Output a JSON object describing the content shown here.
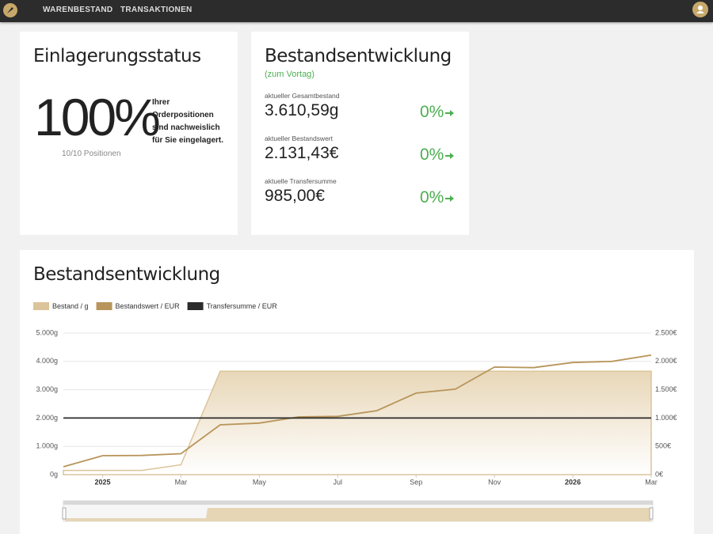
{
  "nav": {
    "items": [
      "WARENBESTAND",
      "TRANSAKTIONEN"
    ]
  },
  "status_card": {
    "title": "Einlagerungsstatus",
    "percent": "100%",
    "description": "Ihrer Orderpositionen sind nachweislich für Sie eingelagert.",
    "positions": "10/10 Positionen"
  },
  "development_card": {
    "title": "Bestandsentwicklung",
    "subtitle": "(zum Vortag)",
    "items": [
      {
        "label": "aktueller Gesamtbestand",
        "value": "3.610,59g",
        "change": "0%"
      },
      {
        "label": "aktueller Bestandswert",
        "value": "2.131,43€",
        "change": "0%"
      },
      {
        "label": "aktuelle Transfersumme",
        "value": "985,00€",
        "change": "0%"
      }
    ]
  },
  "chart_data": {
    "type": "line",
    "title": "Bestandsentwicklung",
    "x": [
      "2024-12",
      "2025-01",
      "2025-02",
      "2025-03",
      "2025-04",
      "2025-05",
      "2025-06",
      "2025-07",
      "2025-08",
      "2025-09",
      "2025-10",
      "2025-11",
      "2025-12",
      "2026-01",
      "2026-02",
      "2026-03"
    ],
    "series": [
      {
        "name": "Bestand / g",
        "color": "#dcc49a",
        "area": true,
        "axis": "y",
        "values": [
          150,
          150,
          150,
          350,
          3650,
          3650,
          3650,
          3650,
          3650,
          3650,
          3650,
          3650,
          3650,
          3650,
          3650,
          3650
        ]
      },
      {
        "name": "Bestandswert / EUR",
        "color": "#b8955a",
        "axis": "y2",
        "values": [
          140,
          335,
          340,
          370,
          880,
          910,
          1020,
          1030,
          1130,
          1440,
          1510,
          1900,
          1890,
          1980,
          2000,
          2110
        ]
      },
      {
        "name": "Transfersumme / EUR",
        "color": "#2b2b2b",
        "axis": "y2",
        "values": [
          1000,
          1000,
          1000,
          1000,
          1000,
          1000,
          1000,
          1000,
          1000,
          1000,
          1000,
          1000,
          1000,
          1000,
          1000,
          1000
        ]
      }
    ],
    "xlim": [
      "2024-12",
      "2026-03"
    ],
    "xticks": [
      {
        "value": "2025-01",
        "label": "2025"
      },
      {
        "value": "2025-03",
        "label": "Mar"
      },
      {
        "value": "2025-05",
        "label": "May"
      },
      {
        "value": "2025-07",
        "label": "Jul"
      },
      {
        "value": "2025-09",
        "label": "Sep"
      },
      {
        "value": "2025-11",
        "label": "Nov"
      },
      {
        "value": "2026-01",
        "label": "2026"
      },
      {
        "value": "2026-03",
        "label": "Mar"
      }
    ],
    "ylim": [
      0,
      5000
    ],
    "yticks": [
      {
        "value": 0,
        "label": "0g"
      },
      {
        "value": 1000,
        "label": "1.000g"
      },
      {
        "value": 2000,
        "label": "2.000g"
      },
      {
        "value": 3000,
        "label": "3.000g"
      },
      {
        "value": 4000,
        "label": "4.000g"
      },
      {
        "value": 5000,
        "label": "5.000g"
      }
    ],
    "y2lim": [
      0,
      2500
    ],
    "y2ticks": [
      {
        "value": 0,
        "label": "0€"
      },
      {
        "value": 500,
        "label": "500€"
      },
      {
        "value": 1000,
        "label": "1.000€"
      },
      {
        "value": 1500,
        "label": "1.500€"
      },
      {
        "value": 2000,
        "label": "2.000€"
      },
      {
        "value": 2500,
        "label": "2.500€"
      }
    ],
    "grid": true,
    "legend": "top-left"
  }
}
